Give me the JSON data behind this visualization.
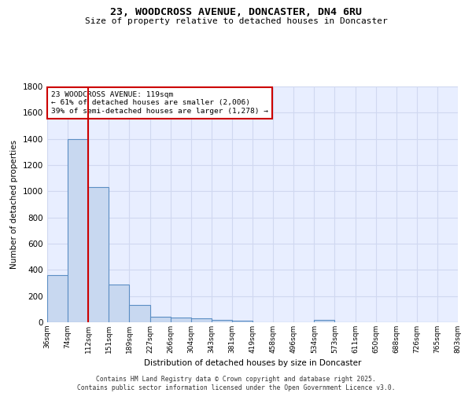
{
  "title_line1": "23, WOODCROSS AVENUE, DONCASTER, DN4 6RU",
  "title_line2": "Size of property relative to detached houses in Doncaster",
  "xlabel": "Distribution of detached houses by size in Doncaster",
  "ylabel": "Number of detached properties",
  "bar_values": [
    360,
    1400,
    1030,
    290,
    135,
    40,
    35,
    30,
    20,
    15,
    0,
    0,
    0,
    20,
    0,
    0,
    0,
    0,
    0,
    0
  ],
  "bin_labels": [
    "36sqm",
    "74sqm",
    "112sqm",
    "151sqm",
    "189sqm",
    "227sqm",
    "266sqm",
    "304sqm",
    "343sqm",
    "381sqm",
    "419sqm",
    "458sqm",
    "496sqm",
    "534sqm",
    "573sqm",
    "611sqm",
    "650sqm",
    "688sqm",
    "726sqm",
    "765sqm",
    "803sqm"
  ],
  "bar_color": "#c8d8f0",
  "bar_edge_color": "#5b8ec4",
  "vline_x": 1.5,
  "vline_color": "#cc0000",
  "annotation_text": "23 WOODCROSS AVENUE: 119sqm\n← 61% of detached houses are smaller (2,006)\n39% of semi-detached houses are larger (1,278) →",
  "annotation_box_color": "#ffffff",
  "annotation_box_edge_color": "#cc0000",
  "ylim": [
    0,
    1800
  ],
  "yticks": [
    0,
    200,
    400,
    600,
    800,
    1000,
    1200,
    1400,
    1600,
    1800
  ],
  "bg_color": "#e8eeff",
  "grid_color": "#d0d8f0",
  "footer_line1": "Contains HM Land Registry data © Crown copyright and database right 2025.",
  "footer_line2": "Contains public sector information licensed under the Open Government Licence v3.0."
}
